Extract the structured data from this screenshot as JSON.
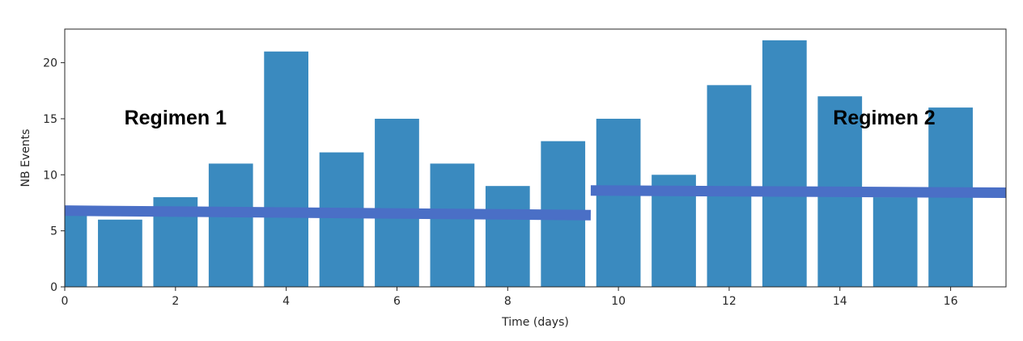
{
  "chart_data": {
    "type": "bar",
    "x": [
      0,
      1,
      2,
      3,
      4,
      5,
      6,
      7,
      8,
      9,
      10,
      11,
      12,
      13,
      14,
      15,
      16
    ],
    "values": [
      7,
      6,
      8,
      11,
      21,
      12,
      15,
      11,
      9,
      13,
      15,
      10,
      18,
      22,
      17,
      8,
      16
    ],
    "xlabel": "Time (days)",
    "ylabel": "NB Events",
    "xlim": [
      0,
      17
    ],
    "ylim": [
      0,
      23
    ],
    "xticks": [
      0,
      2,
      4,
      6,
      8,
      10,
      12,
      14,
      16
    ],
    "yticks": [
      0,
      5,
      10,
      15,
      20
    ],
    "grid": false,
    "bar_color": "#3a8abf",
    "annotations": [
      {
        "text": "Regimen 1",
        "x": 2,
        "y": 14.5
      },
      {
        "text": "Regimen 2",
        "x": 14.8,
        "y": 14.5
      }
    ],
    "trend_lines": [
      {
        "color": "#4a6fc6",
        "x": [
          0,
          9.5
        ],
        "y": [
          6.8,
          6.4
        ]
      },
      {
        "color": "#4a6fc6",
        "x": [
          9.5,
          17
        ],
        "y": [
          8.6,
          8.4
        ]
      }
    ]
  }
}
